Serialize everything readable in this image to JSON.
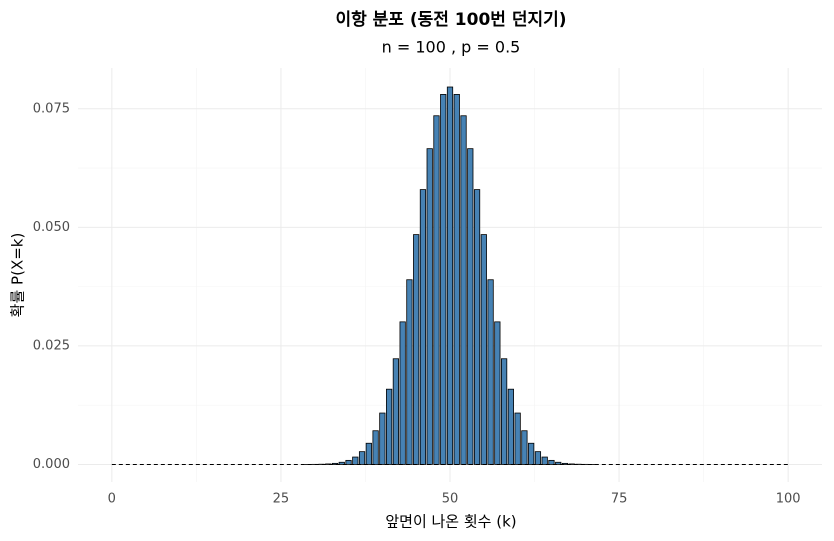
{
  "chart_data": {
    "type": "bar",
    "title": "이항 분포 (동전 100번 던지기)",
    "subtitle": "n = 100 , p = 0.5",
    "x_label": "앞면이 나온 횟수 (k)",
    "y_label": "확률 P(X=k)",
    "x": [
      0,
      1,
      2,
      3,
      4,
      5,
      6,
      7,
      8,
      9,
      10,
      11,
      12,
      13,
      14,
      15,
      16,
      17,
      18,
      19,
      20,
      21,
      22,
      23,
      24,
      25,
      26,
      27,
      28,
      29,
      30,
      31,
      32,
      33,
      34,
      35,
      36,
      37,
      38,
      39,
      40,
      41,
      42,
      43,
      44,
      45,
      46,
      47,
      48,
      49,
      50,
      51,
      52,
      53,
      54,
      55,
      56,
      57,
      58,
      59,
      60,
      61,
      62,
      63,
      64,
      65,
      66,
      67,
      68,
      69,
      70,
      71,
      72,
      73,
      74,
      75,
      76,
      77,
      78,
      79,
      80,
      81,
      82,
      83,
      84,
      85,
      86,
      87,
      88,
      89,
      90,
      91,
      92,
      93,
      94,
      95,
      96,
      97,
      98,
      99,
      100
    ],
    "values": [
      0,
      0,
      0,
      0,
      0,
      0,
      0,
      0,
      0,
      0,
      0,
      0,
      0,
      0,
      0,
      0,
      0,
      0,
      0,
      0,
      0,
      0,
      0,
      0,
      0,
      0,
      0,
      0,
      0,
      1e-05,
      2e-05,
      5e-05,
      0.00011,
      0.00023,
      0.00046,
      0.00086,
      0.00156,
      0.0027,
      0.00447,
      0.00711,
      0.01084,
      0.01587,
      0.02229,
      0.03007,
      0.03895,
      0.04847,
      0.05796,
      0.06659,
      0.07353,
      0.07803,
      0.07959,
      0.07803,
      0.07353,
      0.06659,
      0.05796,
      0.04847,
      0.03895,
      0.03007,
      0.02229,
      0.01587,
      0.01084,
      0.00711,
      0.00447,
      0.0027,
      0.00156,
      0.00086,
      0.00046,
      0.00023,
      0.00011,
      5e-05,
      2e-05,
      1e-05,
      0,
      0,
      0,
      0,
      0,
      0,
      0,
      0,
      0,
      0,
      0,
      0,
      0,
      0,
      0,
      0,
      0,
      0,
      0,
      0,
      0,
      0,
      0,
      0,
      0,
      0,
      0,
      0,
      0
    ],
    "color": "#4682b4",
    "edge_color": "#000000",
    "xlim": [
      -5,
      105
    ],
    "ylim": [
      -0.0037,
      0.0836
    ],
    "xticks": [
      0,
      25,
      50,
      75,
      100
    ],
    "yticks": [
      {
        "value": 0,
        "label": "0.000"
      },
      0.025,
      {
        "value": 0.05,
        "label": "0.050"
      },
      0.075
    ],
    "x_minor_ticks": [
      12.5,
      37.5,
      62.5,
      87.5
    ],
    "y_minor_ticks": [
      0.0125,
      0.0375,
      0.0625
    ],
    "grid": true,
    "baseline_dashed": true
  }
}
